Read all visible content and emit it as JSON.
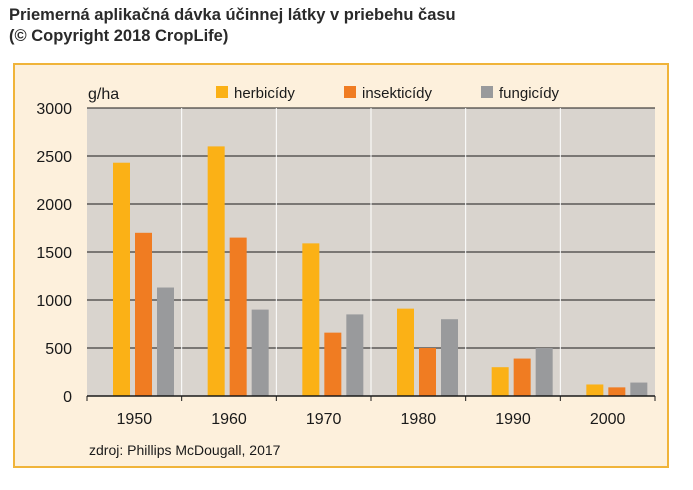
{
  "title": {
    "line1": "Priemerná aplikačná dávka účinnej látky v priebehu času",
    "line2": "(© Copyright 2018 CropLife)"
  },
  "source": "zdroj: Phillips McDougall, 2017",
  "colors": {
    "herbicidy": "#fbb116",
    "insekticidy": "#f07c22",
    "fungicidy": "#999a9c",
    "plot_bg": "#d9d4ce",
    "frame_bg": "#fdf0dc",
    "frame_border": "#f0b43a"
  },
  "chart_data": {
    "type": "bar",
    "unit_label": "g/ha",
    "categories": [
      "1950",
      "1960",
      "1970",
      "1980",
      "1990",
      "2000"
    ],
    "series": [
      {
        "name": "herbicídy",
        "values": [
          2430,
          2600,
          1590,
          910,
          300,
          120
        ]
      },
      {
        "name": "insekticídy",
        "values": [
          1700,
          1650,
          660,
          500,
          390,
          90
        ]
      },
      {
        "name": "fungicídy",
        "values": [
          1130,
          900,
          850,
          800,
          500,
          140
        ]
      }
    ],
    "y_ticks": [
      "0",
      "500",
      "1000",
      "1500",
      "2000",
      "2500",
      "3000"
    ],
    "ylim": [
      0,
      3000
    ],
    "grid": true,
    "legend_position": "top"
  }
}
